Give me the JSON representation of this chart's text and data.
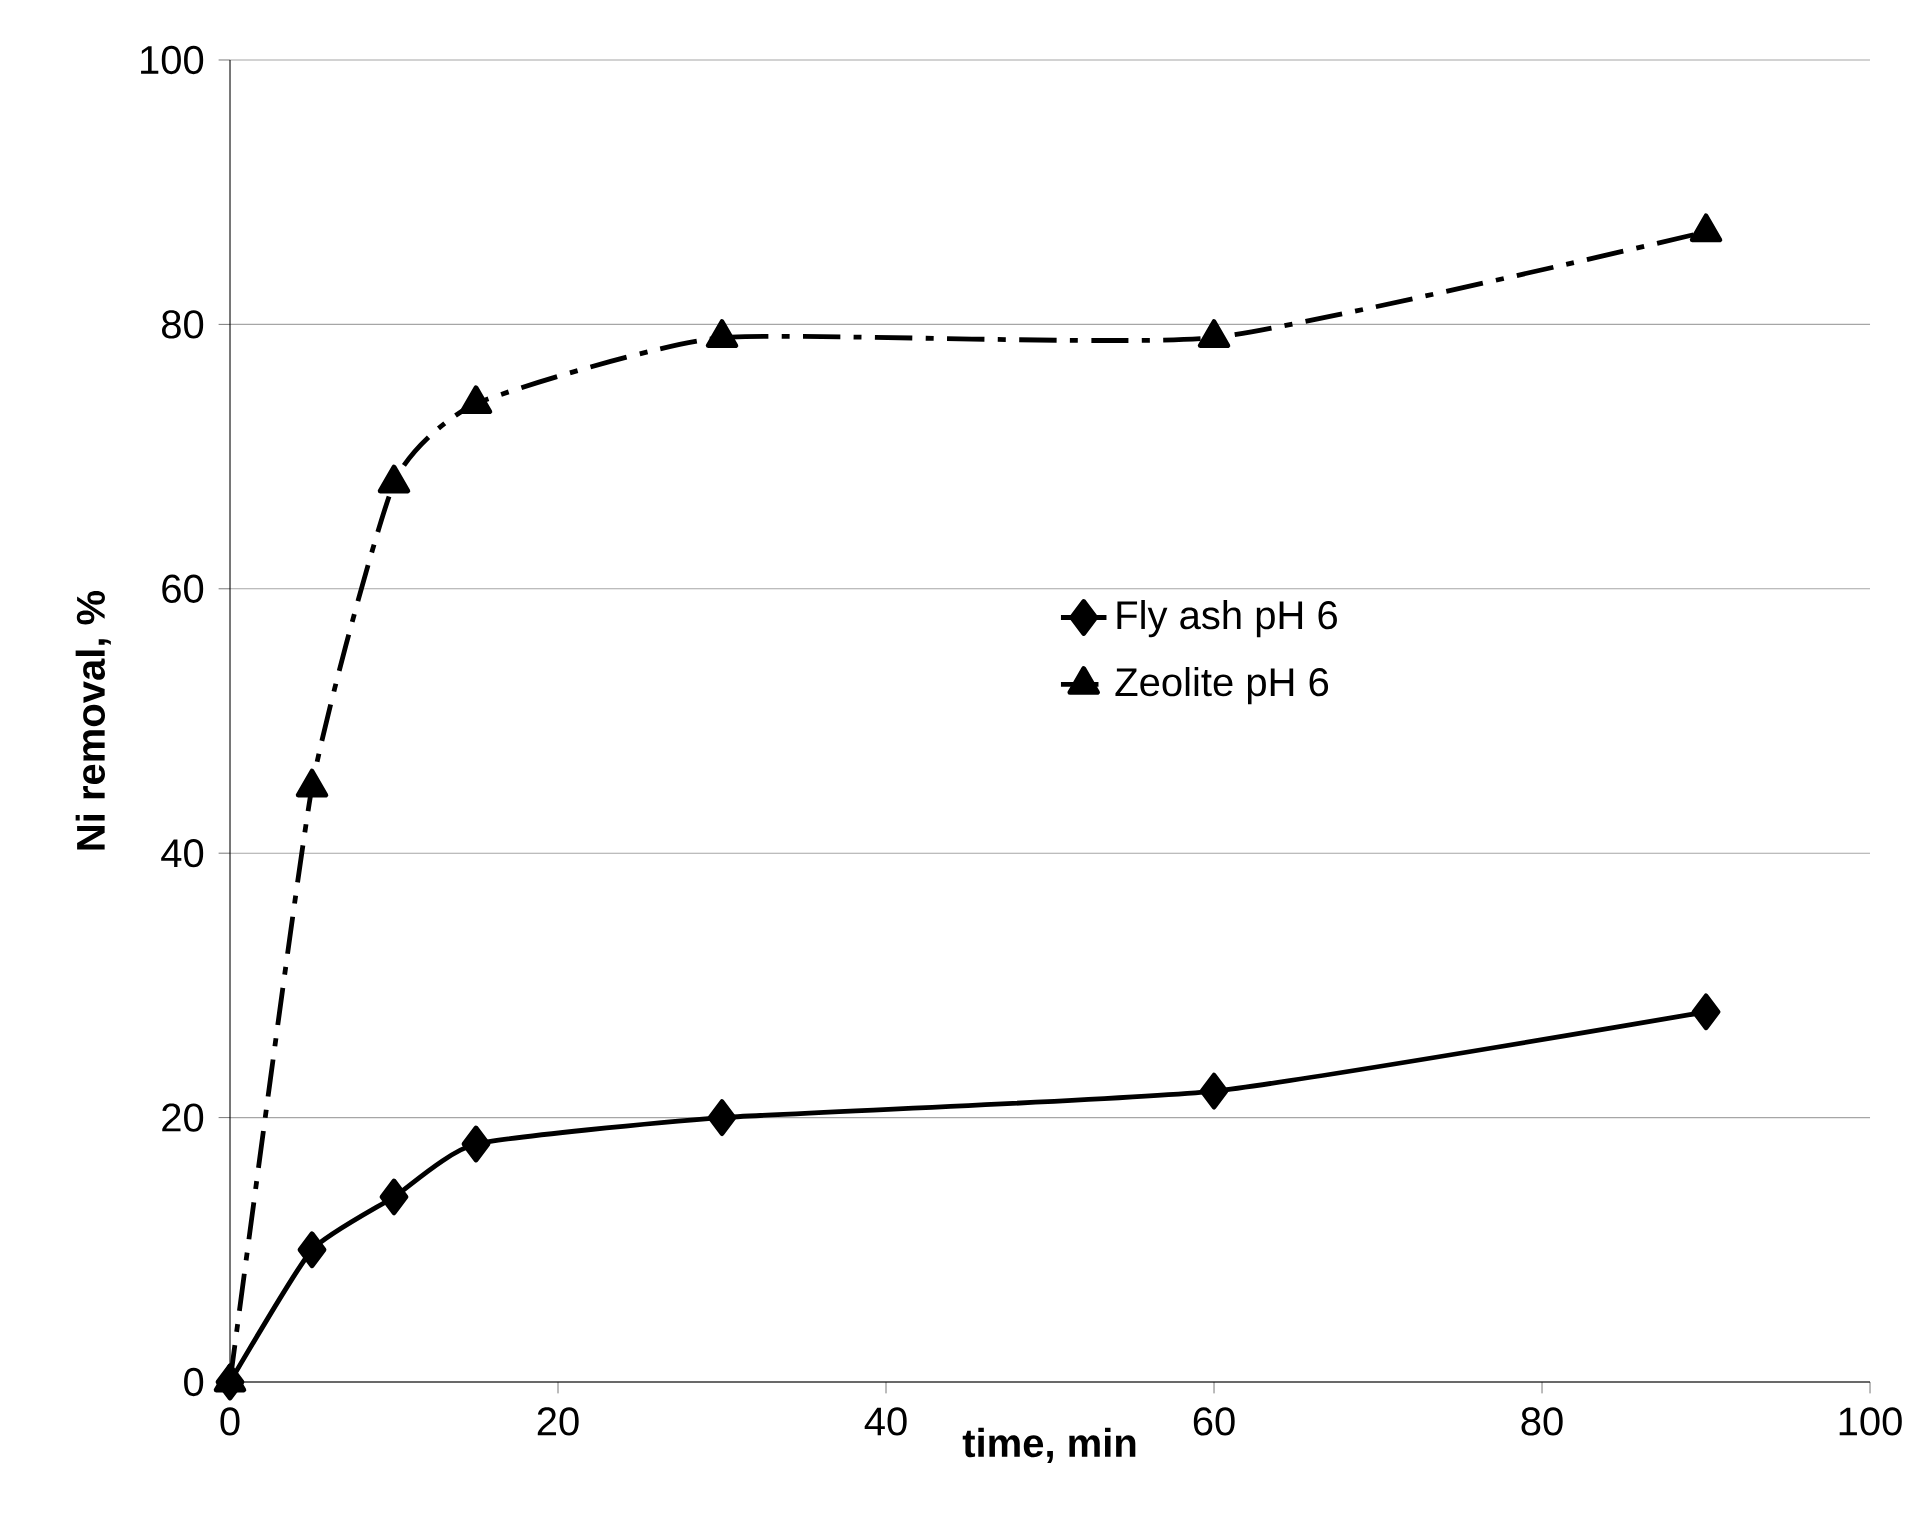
{
  "chart_data": {
    "type": "line",
    "xlabel": "time, min",
    "ylabel": "Ni removal, %",
    "xlim": [
      0,
      100
    ],
    "xticks": [
      0,
      20,
      40,
      60,
      80,
      100
    ],
    "ylim": [
      0,
      100
    ],
    "yticks": [
      0,
      20,
      40,
      60,
      80,
      100
    ],
    "grid": "y",
    "legend": "right",
    "series": [
      {
        "name": "Fly ash pH 6",
        "color": "#000000",
        "marker": "diamond",
        "line_style": "solid",
        "x": [
          0,
          5,
          10,
          15,
          30,
          60,
          90
        ],
        "values": [
          0,
          10,
          14,
          18,
          20,
          22,
          28
        ]
      },
      {
        "name": "Zeolite pH 6",
        "color": "#000000",
        "marker": "triangle",
        "line_style": "dashed",
        "x": [
          0,
          5,
          10,
          15,
          30,
          60,
          90
        ],
        "values": [
          0,
          45,
          68,
          74,
          79,
          79,
          87
        ]
      }
    ]
  }
}
